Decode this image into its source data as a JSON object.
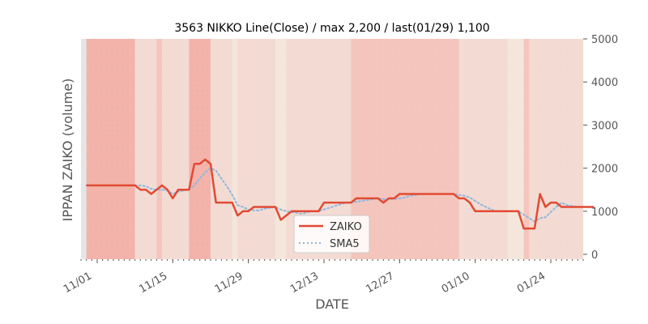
{
  "chart_data": {
    "type": "line",
    "title": "3563 NIKKO Line(Close) / max 2,200 / last(01/29) 1,100",
    "xlabel": "DATE",
    "ylabel": "IPPAN ZAIKO (volume)",
    "ylim": [
      0,
      5000
    ],
    "yticks": [
      0,
      1000,
      2000,
      3000,
      4000,
      5000
    ],
    "ytick_labels": [
      "0",
      "1000",
      "2000",
      "3000",
      "4000",
      "5000"
    ],
    "y_axis_side": "right",
    "x_range": [
      "2021-10-29",
      "2022-01-30"
    ],
    "xticks": [
      "2021-11-01",
      "2021-11-15",
      "2021-11-29",
      "2021-12-13",
      "2021-12-27",
      "2022-01-10",
      "2022-01-24"
    ],
    "xtick_labels": [
      "11/01",
      "11/15",
      "11/29",
      "12/13",
      "12/27",
      "01/10",
      "01/24"
    ],
    "legend_position": "bottom-center",
    "grid": false,
    "colors": {
      "zaiko": "#e24a33",
      "sma5": "#8eb8de",
      "plot_bg": "#e5e5e5",
      "band_dark": "#f3b3aa",
      "band_medium": "#f4c5bc",
      "band_light": "#f3dbd3",
      "band_pale": "#f4e6db"
    },
    "background_bands": [
      {
        "start": "2021-10-30",
        "end": "2021-11-08",
        "shade": "dark"
      },
      {
        "start": "2021-11-08",
        "end": "2021-11-12",
        "shade": "light"
      },
      {
        "start": "2021-11-12",
        "end": "2021-11-13",
        "shade": "medium"
      },
      {
        "start": "2021-11-13",
        "end": "2021-11-18",
        "shade": "light"
      },
      {
        "start": "2021-11-18",
        "end": "2021-11-22",
        "shade": "dark"
      },
      {
        "start": "2021-11-22",
        "end": "2021-11-26",
        "shade": "light"
      },
      {
        "start": "2021-11-26",
        "end": "2021-11-27",
        "shade": "pale"
      },
      {
        "start": "2021-11-27",
        "end": "2021-12-04",
        "shade": "light"
      },
      {
        "start": "2021-12-04",
        "end": "2021-12-06",
        "shade": "pale"
      },
      {
        "start": "2021-12-06",
        "end": "2021-12-18",
        "shade": "light"
      },
      {
        "start": "2021-12-18",
        "end": "2021-12-24",
        "shade": "medium"
      },
      {
        "start": "2021-12-24",
        "end": "2022-01-07",
        "shade": "medium"
      },
      {
        "start": "2022-01-07",
        "end": "2022-01-16",
        "shade": "light"
      },
      {
        "start": "2022-01-16",
        "end": "2022-01-19",
        "shade": "pale"
      },
      {
        "start": "2022-01-19",
        "end": "2022-01-20",
        "shade": "medium"
      },
      {
        "start": "2022-01-20",
        "end": "2022-01-28",
        "shade": "light"
      },
      {
        "start": "2022-01-28",
        "end": "2022-01-30",
        "shade": "light"
      }
    ],
    "series": [
      {
        "name": "ZAIKO",
        "style": "solid",
        "points": [
          [
            "2021-10-30",
            1600
          ],
          [
            "2021-10-31",
            1600
          ],
          [
            "2021-11-01",
            1600
          ],
          [
            "2021-11-02",
            1600
          ],
          [
            "2021-11-03",
            1600
          ],
          [
            "2021-11-04",
            1600
          ],
          [
            "2021-11-05",
            1600
          ],
          [
            "2021-11-06",
            1600
          ],
          [
            "2021-11-07",
            1600
          ],
          [
            "2021-11-08",
            1600
          ],
          [
            "2021-11-09",
            1500
          ],
          [
            "2021-11-10",
            1500
          ],
          [
            "2021-11-11",
            1400
          ],
          [
            "2021-11-12",
            1500
          ],
          [
            "2021-11-13",
            1600
          ],
          [
            "2021-11-14",
            1500
          ],
          [
            "2021-11-15",
            1300
          ],
          [
            "2021-11-16",
            1500
          ],
          [
            "2021-11-17",
            1500
          ],
          [
            "2021-11-18",
            1500
          ],
          [
            "2021-11-19",
            2100
          ],
          [
            "2021-11-20",
            2100
          ],
          [
            "2021-11-21",
            2200
          ],
          [
            "2021-11-22",
            2100
          ],
          [
            "2021-11-23",
            1200
          ],
          [
            "2021-11-24",
            1200
          ],
          [
            "2021-11-25",
            1200
          ],
          [
            "2021-11-26",
            1200
          ],
          [
            "2021-11-27",
            900
          ],
          [
            "2021-11-28",
            1000
          ],
          [
            "2021-11-29",
            1000
          ],
          [
            "2021-11-30",
            1100
          ],
          [
            "2021-12-01",
            1100
          ],
          [
            "2021-12-02",
            1100
          ],
          [
            "2021-12-03",
            1100
          ],
          [
            "2021-12-04",
            1100
          ],
          [
            "2021-12-05",
            800
          ],
          [
            "2021-12-06",
            900
          ],
          [
            "2021-12-07",
            1000
          ],
          [
            "2021-12-08",
            1000
          ],
          [
            "2021-12-09",
            1000
          ],
          [
            "2021-12-10",
            1000
          ],
          [
            "2021-12-11",
            1000
          ],
          [
            "2021-12-12",
            1000
          ],
          [
            "2021-12-13",
            1200
          ],
          [
            "2021-12-14",
            1200
          ],
          [
            "2021-12-15",
            1200
          ],
          [
            "2021-12-16",
            1200
          ],
          [
            "2021-12-17",
            1200
          ],
          [
            "2021-12-18",
            1200
          ],
          [
            "2021-12-19",
            1300
          ],
          [
            "2021-12-20",
            1300
          ],
          [
            "2021-12-21",
            1300
          ],
          [
            "2021-12-22",
            1300
          ],
          [
            "2021-12-23",
            1300
          ],
          [
            "2021-12-24",
            1200
          ],
          [
            "2021-12-25",
            1300
          ],
          [
            "2021-12-26",
            1300
          ],
          [
            "2021-12-27",
            1400
          ],
          [
            "2021-12-28",
            1400
          ],
          [
            "2021-12-29",
            1400
          ],
          [
            "2021-12-30",
            1400
          ],
          [
            "2021-12-31",
            1400
          ],
          [
            "2022-01-01",
            1400
          ],
          [
            "2022-01-02",
            1400
          ],
          [
            "2022-01-03",
            1400
          ],
          [
            "2022-01-04",
            1400
          ],
          [
            "2022-01-05",
            1400
          ],
          [
            "2022-01-06",
            1400
          ],
          [
            "2022-01-07",
            1300
          ],
          [
            "2022-01-08",
            1300
          ],
          [
            "2022-01-09",
            1200
          ],
          [
            "2022-01-10",
            1000
          ],
          [
            "2022-01-11",
            1000
          ],
          [
            "2022-01-12",
            1000
          ],
          [
            "2022-01-13",
            1000
          ],
          [
            "2022-01-14",
            1000
          ],
          [
            "2022-01-15",
            1000
          ],
          [
            "2022-01-16",
            1000
          ],
          [
            "2022-01-17",
            1000
          ],
          [
            "2022-01-18",
            1000
          ],
          [
            "2022-01-19",
            600
          ],
          [
            "2022-01-20",
            600
          ],
          [
            "2022-01-21",
            600
          ],
          [
            "2022-01-22",
            1400
          ],
          [
            "2022-01-23",
            1100
          ],
          [
            "2022-01-24",
            1200
          ],
          [
            "2022-01-25",
            1200
          ],
          [
            "2022-01-26",
            1100
          ],
          [
            "2022-01-27",
            1100
          ],
          [
            "2022-01-28",
            1100
          ],
          [
            "2022-01-29",
            1100
          ],
          [
            "2022-01-30",
            1100
          ],
          [
            "2022-01-31",
            1100
          ],
          [
            "2022-02-01",
            1100
          ]
        ]
      },
      {
        "name": "SMA5",
        "style": "dotted",
        "points": [
          [
            "2021-10-30",
            1600
          ],
          [
            "2021-11-05",
            1600
          ],
          [
            "2021-11-08",
            1600
          ],
          [
            "2021-11-09",
            1600
          ],
          [
            "2021-11-10",
            1580
          ],
          [
            "2021-11-11",
            1520
          ],
          [
            "2021-11-12",
            1500
          ],
          [
            "2021-11-13",
            1500
          ],
          [
            "2021-11-14",
            1480
          ],
          [
            "2021-11-15",
            1400
          ],
          [
            "2021-11-16",
            1450
          ],
          [
            "2021-11-17",
            1480
          ],
          [
            "2021-11-18",
            1500
          ],
          [
            "2021-11-19",
            1600
          ],
          [
            "2021-11-20",
            1760
          ],
          [
            "2021-11-21",
            1900
          ],
          [
            "2021-11-22",
            2000
          ],
          [
            "2021-11-23",
            1940
          ],
          [
            "2021-11-24",
            1760
          ],
          [
            "2021-11-25",
            1580
          ],
          [
            "2021-11-26",
            1380
          ],
          [
            "2021-11-27",
            1140
          ],
          [
            "2021-11-28",
            1100
          ],
          [
            "2021-11-29",
            1040
          ],
          [
            "2021-11-30",
            1020
          ],
          [
            "2021-12-01",
            1020
          ],
          [
            "2021-12-02",
            1060
          ],
          [
            "2021-12-03",
            1080
          ],
          [
            "2021-12-04",
            1100
          ],
          [
            "2021-12-05",
            1040
          ],
          [
            "2021-12-06",
            1000
          ],
          [
            "2021-12-07",
            980
          ],
          [
            "2021-12-08",
            960
          ],
          [
            "2021-12-09",
            940
          ],
          [
            "2021-12-10",
            980
          ],
          [
            "2021-12-11",
            1000
          ],
          [
            "2021-12-12",
            1000
          ],
          [
            "2021-12-13",
            1040
          ],
          [
            "2021-12-14",
            1080
          ],
          [
            "2021-12-15",
            1120
          ],
          [
            "2021-12-16",
            1160
          ],
          [
            "2021-12-17",
            1200
          ],
          [
            "2021-12-18",
            1200
          ],
          [
            "2021-12-19",
            1220
          ],
          [
            "2021-12-20",
            1240
          ],
          [
            "2021-12-21",
            1260
          ],
          [
            "2021-12-22",
            1280
          ],
          [
            "2021-12-23",
            1300
          ],
          [
            "2021-12-24",
            1280
          ],
          [
            "2021-12-25",
            1280
          ],
          [
            "2021-12-26",
            1280
          ],
          [
            "2021-12-27",
            1300
          ],
          [
            "2021-12-28",
            1320
          ],
          [
            "2021-12-29",
            1360
          ],
          [
            "2021-12-30",
            1380
          ],
          [
            "2021-12-31",
            1400
          ],
          [
            "2022-01-06",
            1400
          ],
          [
            "2022-01-07",
            1380
          ],
          [
            "2022-01-08",
            1360
          ],
          [
            "2022-01-09",
            1320
          ],
          [
            "2022-01-10",
            1240
          ],
          [
            "2022-01-11",
            1160
          ],
          [
            "2022-01-12",
            1100
          ],
          [
            "2022-01-13",
            1040
          ],
          [
            "2022-01-14",
            1000
          ],
          [
            "2022-01-17",
            1000
          ],
          [
            "2022-01-18",
            1000
          ],
          [
            "2022-01-19",
            920
          ],
          [
            "2022-01-20",
            840
          ],
          [
            "2022-01-21",
            760
          ],
          [
            "2022-01-22",
            840
          ],
          [
            "2022-01-23",
            860
          ],
          [
            "2022-01-24",
            980
          ],
          [
            "2022-01-25",
            1100
          ],
          [
            "2022-01-26",
            1200
          ],
          [
            "2022-01-27",
            1140
          ],
          [
            "2022-01-28",
            1120
          ],
          [
            "2022-01-29",
            1100
          ],
          [
            "2022-02-01",
            1100
          ]
        ]
      }
    ]
  }
}
